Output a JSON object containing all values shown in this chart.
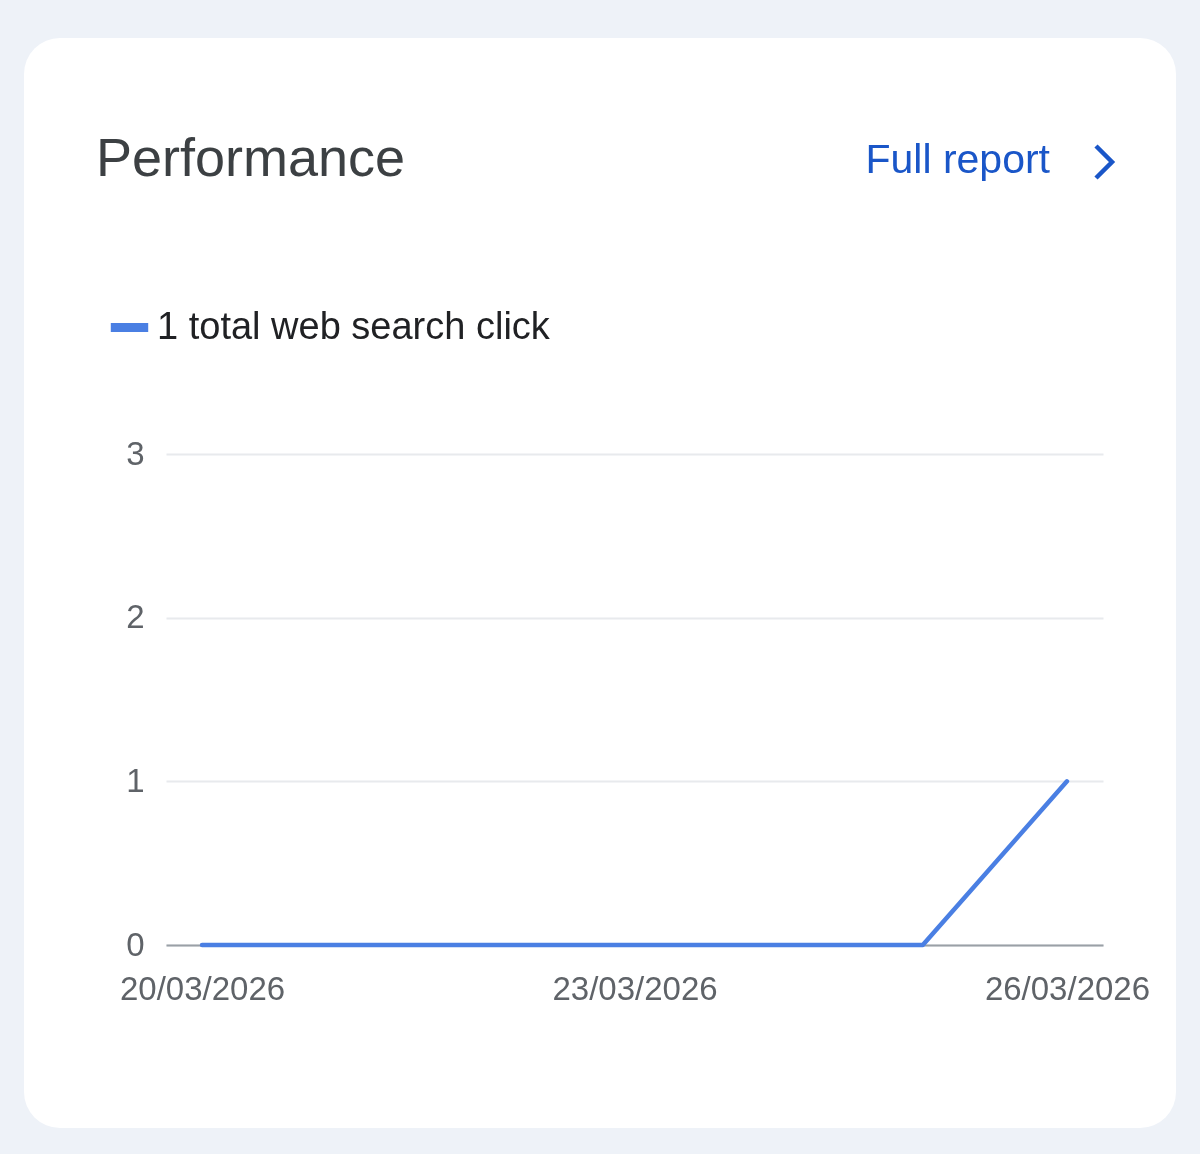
{
  "chart_data": {
    "type": "line",
    "title": "Performance",
    "annotations": [
      "Full report"
    ],
    "x": [
      "2026-03-20",
      "2026-03-21",
      "2026-03-22",
      "2026-03-23",
      "2026-03-24",
      "2026-03-25",
      "2026-03-26"
    ],
    "series": [
      {
        "name": "1 total web search click",
        "color": "#4a7fe3",
        "values": [
          0,
          0,
          0,
          0,
          0,
          0,
          1
        ]
      }
    ],
    "xlim": [
      "2026-03-19T18:00",
      "2026-03-26T06:00"
    ],
    "xticks": [
      {
        "value": "2026-03-20",
        "label": "20/03/2026"
      },
      {
        "value": "2026-03-23",
        "label": "23/03/2026"
      },
      {
        "value": "2026-03-26",
        "label": "26/03/2026"
      }
    ],
    "ylim": [
      0,
      3
    ],
    "yticks": [
      0,
      1,
      2,
      3
    ],
    "grid": "y",
    "legend": "top left",
    "marker": "none",
    "line_style": "solid"
  }
}
